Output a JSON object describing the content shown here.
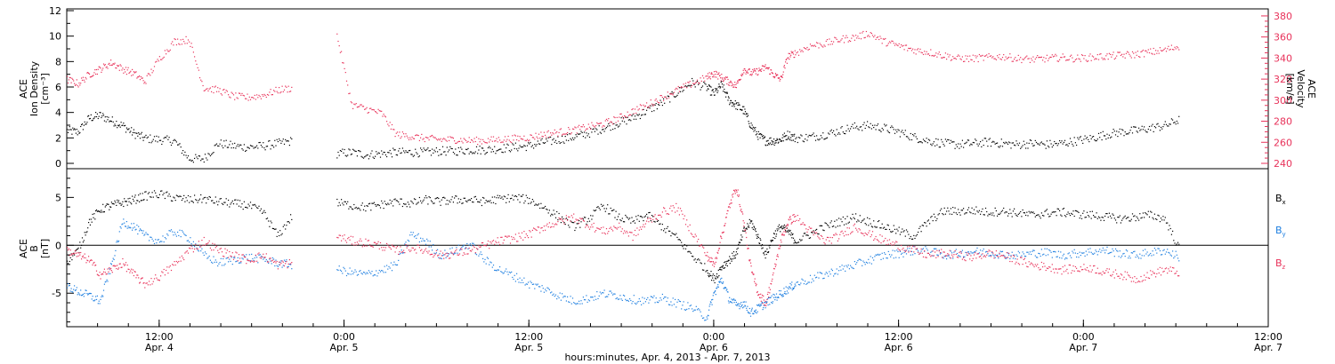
{
  "chart_data": [
    {
      "type": "scatter",
      "panel": "top",
      "ylabel_left": [
        "ACE",
        "Ion Density",
        "[cm⁻³]"
      ],
      "ylabel_right": [
        "ACE",
        "Velocity",
        "[km/s]"
      ],
      "ylim_left": [
        0,
        12
      ],
      "yticks_left": [
        "0",
        "2",
        "4",
        "6",
        "8",
        "10",
        "12"
      ],
      "ylim_right": [
        240,
        385
      ],
      "yticks_right": [
        "240",
        "260",
        "280",
        "300",
        "320",
        "340",
        "360",
        "380"
      ],
      "colors": {
        "density": "#000000",
        "velocity": "#e8325a"
      },
      "series": [
        {
          "key": "density",
          "axis": "left",
          "x": [
            4.25,
            4.28,
            4.31,
            4.34,
            4.37,
            4.4,
            4.43,
            4.46,
            4.5,
            4.54,
            4.58,
            4.62,
            4.66,
            4.7,
            4.74,
            4.78,
            4.82,
            4.86,
            4.9,
            4.94,
            4.98,
            5.02,
            5.06,
            5.1,
            5.14,
            5.18,
            5.22,
            5.26,
            5.3,
            5.34,
            5.38,
            5.42,
            5.46,
            5.5,
            5.54,
            5.58,
            5.62,
            5.66,
            5.7,
            5.74,
            5.78,
            5.82,
            5.86,
            5.9,
            5.94,
            5.98,
            6.0,
            6.02,
            6.04,
            6.06,
            6.08,
            6.1,
            6.12,
            6.14,
            6.16,
            6.18,
            6.2,
            6.22,
            6.26,
            6.3,
            6.34,
            6.38,
            6.42,
            6.46,
            6.5,
            6.54,
            6.58,
            6.62,
            6.66,
            6.7,
            6.74,
            6.78,
            6.82,
            6.86,
            6.9,
            6.94,
            6.98,
            7.02,
            7.06,
            7.1,
            7.14,
            7.18,
            7.22,
            7.26
          ],
          "y": [
            2.6,
            2.5,
            3.6,
            3.8,
            3.4,
            3.0,
            2.4,
            2.0,
            1.9,
            1.8,
            0.4,
            0.4,
            1.6,
            1.4,
            1.3,
            1.4,
            1.6,
            1.8,
            null,
            null,
            0.8,
            0.9,
            0.7,
            0.8,
            0.9,
            0.9,
            0.9,
            1.0,
            1.0,
            1.1,
            1.1,
            1.2,
            1.3,
            1.4,
            1.7,
            1.9,
            2.1,
            2.4,
            2.8,
            3.2,
            3.6,
            4.2,
            4.8,
            5.6,
            6.4,
            6.0,
            5.5,
            6.2,
            5.0,
            4.6,
            4.2,
            3.0,
            2.2,
            1.8,
            1.8,
            1.9,
            2.3,
            2.0,
            2.1,
            2.3,
            2.6,
            2.9,
            3.0,
            2.8,
            2.5,
            2.1,
            1.8,
            1.6,
            1.5,
            1.6,
            1.7,
            1.6,
            1.5,
            1.6,
            1.5,
            1.6,
            1.8,
            2.0,
            2.3,
            2.5,
            2.6,
            2.8,
            3.0,
            3.5
          ]
        },
        {
          "key": "velocity",
          "axis": "right",
          "x": [
            4.25,
            4.28,
            4.31,
            4.34,
            4.37,
            4.4,
            4.43,
            4.46,
            4.5,
            4.54,
            4.58,
            4.62,
            4.66,
            4.7,
            4.74,
            4.78,
            4.82,
            4.86,
            4.9,
            4.94,
            4.98,
            5.02,
            5.06,
            5.1,
            5.14,
            5.18,
            5.22,
            5.26,
            5.3,
            5.34,
            5.38,
            5.42,
            5.46,
            5.5,
            5.54,
            5.58,
            5.62,
            5.66,
            5.7,
            5.74,
            5.78,
            5.82,
            5.86,
            5.9,
            5.94,
            5.98,
            6.0,
            6.02,
            6.04,
            6.06,
            6.08,
            6.1,
            6.12,
            6.14,
            6.16,
            6.18,
            6.2,
            6.22,
            6.26,
            6.3,
            6.34,
            6.38,
            6.42,
            6.46,
            6.5,
            6.54,
            6.58,
            6.62,
            6.66,
            6.7,
            6.74,
            6.78,
            6.82,
            6.86,
            6.9,
            6.94,
            6.98,
            7.02,
            7.06,
            7.1,
            7.14,
            7.18,
            7.22,
            7.26
          ],
          "y": [
            320,
            316,
            325,
            330,
            336,
            330,
            326,
            318,
            340,
            356,
            358,
            312,
            310,
            304,
            303,
            305,
            310,
            312,
            null,
            null,
            362,
            296,
            292,
            288,
            268,
            266,
            264,
            263,
            263,
            262,
            262,
            263,
            264,
            265,
            268,
            270,
            272,
            275,
            278,
            283,
            290,
            296,
            303,
            310,
            316,
            322,
            326,
            322,
            318,
            314,
            330,
            326,
            328,
            332,
            325,
            320,
            342,
            345,
            352,
            354,
            358,
            360,
            364,
            356,
            352,
            348,
            346,
            343,
            340,
            340,
            341,
            342,
            340,
            339,
            340,
            341,
            340,
            341,
            342,
            343,
            344,
            346,
            348,
            352
          ]
        }
      ]
    },
    {
      "type": "scatter",
      "panel": "bottom",
      "ylabel_left": [
        "ACE",
        "B",
        "[nT]"
      ],
      "ylim": [
        -8.5,
        8
      ],
      "yticks": [
        "-5",
        "0",
        "5"
      ],
      "zero_line": true,
      "colors": {
        "Bx": "#000000",
        "By": "#1e7fe0",
        "Bz": "#e8325a"
      },
      "x_axis": {
        "ticks": [
          {
            "time": "12:00",
            "date": "Apr. 4"
          },
          {
            "time": "0:00",
            "date": "Apr. 5"
          },
          {
            "time": "12:00",
            "date": "Apr. 5"
          },
          {
            "time": "0:00",
            "date": "Apr. 6"
          },
          {
            "time": "12:00",
            "date": "Apr. 6"
          },
          {
            "time": "0:00",
            "date": "Apr. 7"
          },
          {
            "time": "12:00",
            "date": "Apr. 7"
          }
        ],
        "tick_days": [
          4.5,
          5.0,
          5.5,
          6.0,
          6.5,
          7.0,
          7.5
        ],
        "xlim_days": [
          4.25,
          7.5
        ],
        "label": "hours:minutes, Apr.  4, 2013 - Apr.  7, 2013"
      },
      "series": [
        {
          "name": "Bx",
          "x": [
            4.25,
            4.28,
            4.31,
            4.34,
            4.37,
            4.4,
            4.43,
            4.46,
            4.5,
            4.54,
            4.58,
            4.62,
            4.66,
            4.7,
            4.74,
            4.78,
            4.82,
            4.86,
            4.9,
            4.94,
            4.98,
            5.02,
            5.06,
            5.1,
            5.14,
            5.18,
            5.22,
            5.26,
            5.3,
            5.34,
            5.38,
            5.42,
            5.46,
            5.5,
            5.54,
            5.58,
            5.62,
            5.66,
            5.7,
            5.74,
            5.78,
            5.82,
            5.86,
            5.9,
            5.94,
            5.98,
            6.0,
            6.02,
            6.04,
            6.06,
            6.08,
            6.1,
            6.12,
            6.14,
            6.16,
            6.18,
            6.2,
            6.22,
            6.26,
            6.3,
            6.34,
            6.38,
            6.42,
            6.46,
            6.5,
            6.54,
            6.58,
            6.62,
            6.66,
            6.7,
            6.74,
            6.78,
            6.82,
            6.86,
            6.9,
            6.94,
            6.98,
            7.02,
            7.06,
            7.1,
            7.14,
            7.18,
            7.22,
            7.26
          ],
          "y": [
            -1.5,
            -0.5,
            2.5,
            3.8,
            4.2,
            4.5,
            4.8,
            5.2,
            5.4,
            5.0,
            4.8,
            4.9,
            4.6,
            4.4,
            4.2,
            3.5,
            1.0,
            3.2,
            null,
            null,
            4.5,
            4.2,
            4.0,
            4.3,
            4.6,
            4.4,
            4.8,
            4.6,
            4.8,
            4.8,
            4.6,
            4.9,
            5.0,
            4.8,
            4.0,
            3.0,
            2.0,
            2.8,
            4.2,
            3.0,
            2.5,
            3.2,
            2.0,
            0.8,
            -1.0,
            -2.5,
            -3.5,
            -2.2,
            -1.5,
            -0.8,
            1.5,
            2.5,
            0.8,
            -1.0,
            1.0,
            2.0,
            1.5,
            0.5,
            1.2,
            2.0,
            2.5,
            3.0,
            2.5,
            2.0,
            1.5,
            1.0,
            2.5,
            3.6,
            3.6,
            3.7,
            3.5,
            3.6,
            3.4,
            3.2,
            3.4,
            3.5,
            3.3,
            3.2,
            3.0,
            2.8,
            3.0,
            3.2,
            2.8,
            -0.5
          ]
        },
        {
          "name": "By",
          "x": [
            4.25,
            4.28,
            4.31,
            4.34,
            4.37,
            4.4,
            4.43,
            4.46,
            4.5,
            4.54,
            4.58,
            4.62,
            4.66,
            4.7,
            4.74,
            4.78,
            4.82,
            4.86,
            4.9,
            4.94,
            4.98,
            5.02,
            5.06,
            5.1,
            5.14,
            5.18,
            5.22,
            5.26,
            5.3,
            5.34,
            5.38,
            5.42,
            5.46,
            5.5,
            5.54,
            5.58,
            5.62,
            5.66,
            5.7,
            5.74,
            5.78,
            5.82,
            5.86,
            5.9,
            5.94,
            5.98,
            6.0,
            6.02,
            6.04,
            6.06,
            6.08,
            6.1,
            6.12,
            6.14,
            6.16,
            6.18,
            6.2,
            6.22,
            6.26,
            6.3,
            6.34,
            6.38,
            6.42,
            6.46,
            6.5,
            6.54,
            6.58,
            6.62,
            6.66,
            6.7,
            6.74,
            6.78,
            6.82,
            6.86,
            6.9,
            6.94,
            6.98,
            7.02,
            7.06,
            7.1,
            7.14,
            7.18,
            7.22,
            7.26
          ],
          "y": [
            -4.2,
            -4.8,
            -5.2,
            -5.8,
            -2.0,
            2.5,
            2.0,
            1.0,
            0.5,
            1.5,
            0.8,
            -1.0,
            -1.8,
            -1.5,
            -1.2,
            -1.4,
            -1.8,
            -2.0,
            null,
            null,
            -2.5,
            -2.8,
            -3.0,
            -2.6,
            -2.0,
            1.2,
            0.5,
            -1.0,
            -0.5,
            0.2,
            -1.5,
            -2.5,
            -3.2,
            -4.0,
            -4.5,
            -5.2,
            -5.8,
            -5.5,
            -5.0,
            -5.2,
            -5.6,
            -5.8,
            -5.5,
            -6.0,
            -6.5,
            -7.5,
            -5.0,
            -3.5,
            -5.5,
            -6.2,
            -6.0,
            -7.0,
            -6.5,
            -6.0,
            -5.5,
            -5.0,
            -4.5,
            -4.0,
            -3.5,
            -3.0,
            -2.5,
            -2.0,
            -1.5,
            -1.0,
            -0.8,
            -0.5,
            -0.5,
            -1.0,
            -0.8,
            -0.6,
            -0.7,
            -0.9,
            -1.0,
            -0.8,
            -0.7,
            -1.0,
            -0.8,
            -0.6,
            -0.5,
            -0.8,
            -1.0,
            -0.7,
            -0.5,
            -1.2
          ]
        },
        {
          "name": "Bz",
          "x": [
            4.25,
            4.28,
            4.31,
            4.34,
            4.37,
            4.4,
            4.43,
            4.46,
            4.5,
            4.54,
            4.58,
            4.62,
            4.66,
            4.7,
            4.74,
            4.78,
            4.82,
            4.86,
            4.9,
            4.94,
            4.98,
            5.02,
            5.06,
            5.1,
            5.14,
            5.18,
            5.22,
            5.26,
            5.3,
            5.34,
            5.38,
            5.42,
            5.46,
            5.5,
            5.54,
            5.58,
            5.62,
            5.66,
            5.7,
            5.74,
            5.78,
            5.82,
            5.86,
            5.9,
            5.94,
            5.98,
            6.0,
            6.02,
            6.04,
            6.06,
            6.08,
            6.1,
            6.12,
            6.14,
            6.16,
            6.18,
            6.2,
            6.22,
            6.26,
            6.3,
            6.34,
            6.38,
            6.42,
            6.46,
            6.5,
            6.54,
            6.58,
            6.62,
            6.66,
            6.7,
            6.74,
            6.78,
            6.82,
            6.86,
            6.9,
            6.94,
            6.98,
            7.02,
            7.06,
            7.1,
            7.14,
            7.18,
            7.22,
            7.26
          ],
          "y": [
            -0.5,
            -1.0,
            -1.5,
            -3.0,
            -2.5,
            -1.8,
            -3.0,
            -4.0,
            -3.2,
            -2.0,
            -0.5,
            0.5,
            -0.5,
            -1.0,
            -1.5,
            -1.0,
            -2.0,
            -1.8,
            null,
            null,
            1.0,
            0.5,
            0.3,
            0.0,
            -0.5,
            -0.2,
            -0.5,
            -1.0,
            -0.8,
            -0.5,
            0.0,
            0.5,
            0.8,
            1.2,
            2.0,
            2.5,
            3.0,
            2.2,
            1.5,
            2.0,
            1.0,
            2.5,
            3.5,
            4.0,
            1.5,
            -1.0,
            -2.0,
            1.0,
            4.0,
            6.2,
            2.5,
            -2.5,
            -5.0,
            -6.0,
            -3.0,
            0.5,
            2.5,
            3.0,
            1.5,
            0.5,
            1.0,
            2.0,
            1.2,
            0.5,
            0.0,
            -0.5,
            -1.0,
            -0.8,
            -1.0,
            -1.2,
            -0.8,
            -1.0,
            -1.5,
            -2.0,
            -2.2,
            -2.5,
            -2.4,
            -2.3,
            -2.8,
            -3.0,
            -3.5,
            -3.0,
            -2.5,
            -2.8
          ]
        }
      ]
    }
  ]
}
